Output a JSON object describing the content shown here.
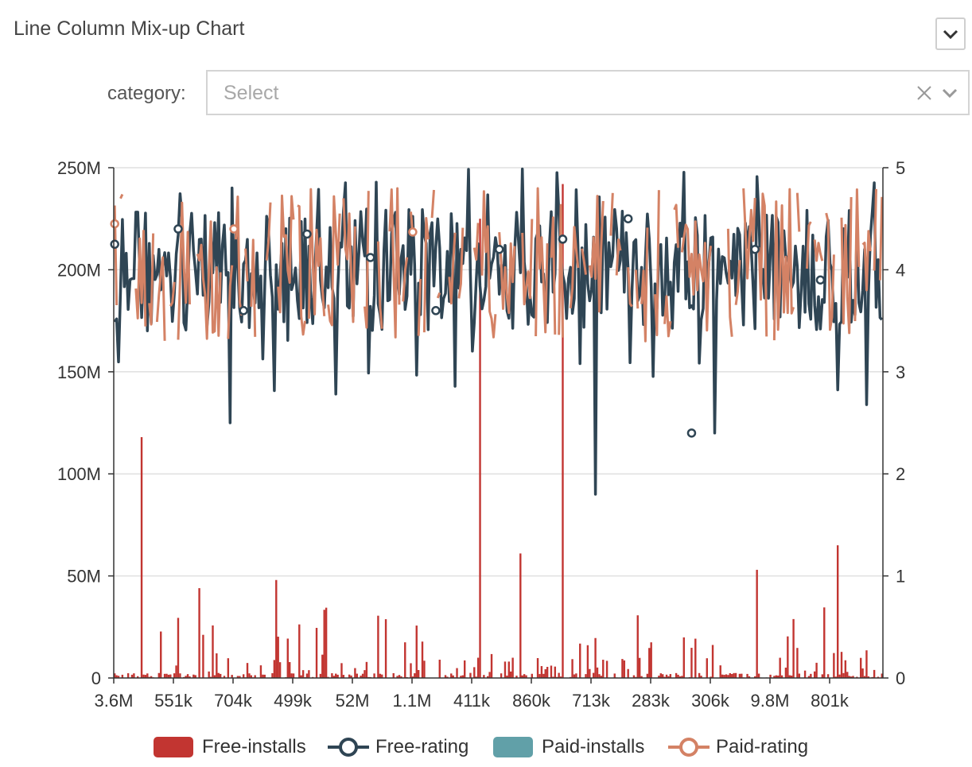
{
  "header": {
    "title": "Line Column Mix-up Chart",
    "collapse_icon": "chevron-down-icon"
  },
  "filter": {
    "label": "category:",
    "placeholder": "Select",
    "clear_icon": "close-icon",
    "dropdown_icon": "chevron-down-icon"
  },
  "chart_data": {
    "type": "bar",
    "title": "",
    "x_tick_labels": [
      "3.6M",
      "551k",
      "704k",
      "499k",
      "52M",
      "1.1M",
      "411k",
      "860k",
      "713k",
      "283k",
      "306k",
      "9.8M",
      "801k"
    ],
    "y_left": {
      "ticks": [
        "0",
        "50M",
        "100M",
        "150M",
        "200M",
        "250M"
      ],
      "range": [
        0,
        250000000
      ]
    },
    "y_right": {
      "ticks": [
        "0",
        "1",
        "2",
        "3",
        "4",
        "5"
      ],
      "range": [
        0,
        5
      ]
    },
    "grid": "horizontal",
    "legend_position": "bottom-center",
    "series": [
      {
        "name": "Free-installs",
        "type": "bar",
        "axis": "left",
        "color": "#c23531"
      },
      {
        "name": "Free-rating",
        "type": "line",
        "axis": "right",
        "color": "#2f4554"
      },
      {
        "name": "Paid-installs",
        "type": "bar",
        "axis": "left",
        "color": "#61a0a8"
      },
      {
        "name": "Paid-rating",
        "type": "line",
        "axis": "right",
        "color": "#d48265"
      }
    ],
    "notable_bars": [
      {
        "x_index": 14,
        "value": 118000000
      },
      {
        "x_index": 190,
        "value": 225000000
      },
      {
        "x_index": 233,
        "value": 242000000
      },
      {
        "x_index": 334,
        "value": 53000000
      },
      {
        "x_index": 376,
        "value": 65000000
      },
      {
        "x_index": 211,
        "value": 61000000
      },
      {
        "x_index": 84,
        "value": 48000000
      },
      {
        "x_index": 44,
        "value": 44000000
      }
    ],
    "free_rating_markers": [
      4.25,
      4.4,
      3.6,
      4.35,
      4.12,
      3.6,
      4.2,
      4.3,
      4.5,
      2.4,
      4.2,
      3.9
    ],
    "paid_rating_markers": [
      4.45,
      4.4,
      4.37
    ]
  }
}
